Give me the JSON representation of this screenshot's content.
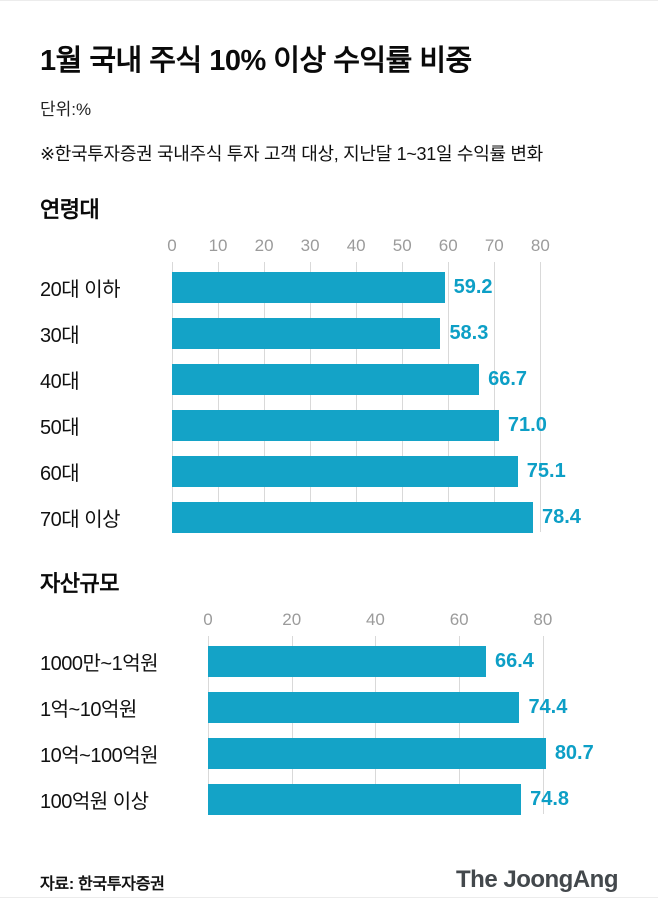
{
  "header": {
    "title": "1월 국내 주식 10% 이상 수익률 비중",
    "unit": "단위:%",
    "note": "※한국투자증권 국내주식 투자 고객 대상, 지난달 1~31일 수익률 변화"
  },
  "colors": {
    "bar": "#14a3c7",
    "value": "#0d9fc6",
    "grid": "#d9d9d9",
    "axis_text": "#9b9b9b"
  },
  "chart_data": [
    {
      "type": "bar",
      "title": "연령대",
      "categories": [
        "20대 이하",
        "30대",
        "40대",
        "50대",
        "60대",
        "70대 이상"
      ],
      "values": [
        59.2,
        58.3,
        66.7,
        71.0,
        75.1,
        78.4
      ],
      "value_labels": [
        "59.2",
        "58.3",
        "66.7",
        "71.0",
        "75.1",
        "78.4"
      ],
      "ticks": [
        0,
        10,
        20,
        30,
        40,
        50,
        60,
        70,
        80
      ],
      "xlabel": "",
      "ylabel": "",
      "xlim": [
        0,
        86
      ],
      "grid": true,
      "legend": "none"
    },
    {
      "type": "bar",
      "title": "자산규모",
      "categories": [
        "1000만~1억원",
        "1억~10억원",
        "10억~100억원",
        "100억원 이상"
      ],
      "values": [
        66.4,
        74.4,
        80.7,
        74.8
      ],
      "value_labels": [
        "66.4",
        "74.4",
        "80.7",
        "74.8"
      ],
      "ticks": [
        0,
        20,
        40,
        60,
        80
      ],
      "xlabel": "",
      "ylabel": "",
      "xlim": [
        0,
        86
      ],
      "grid": true,
      "legend": "none"
    }
  ],
  "footer": {
    "source": "자료: 한국투자증권",
    "logo": "The JoongAng"
  }
}
